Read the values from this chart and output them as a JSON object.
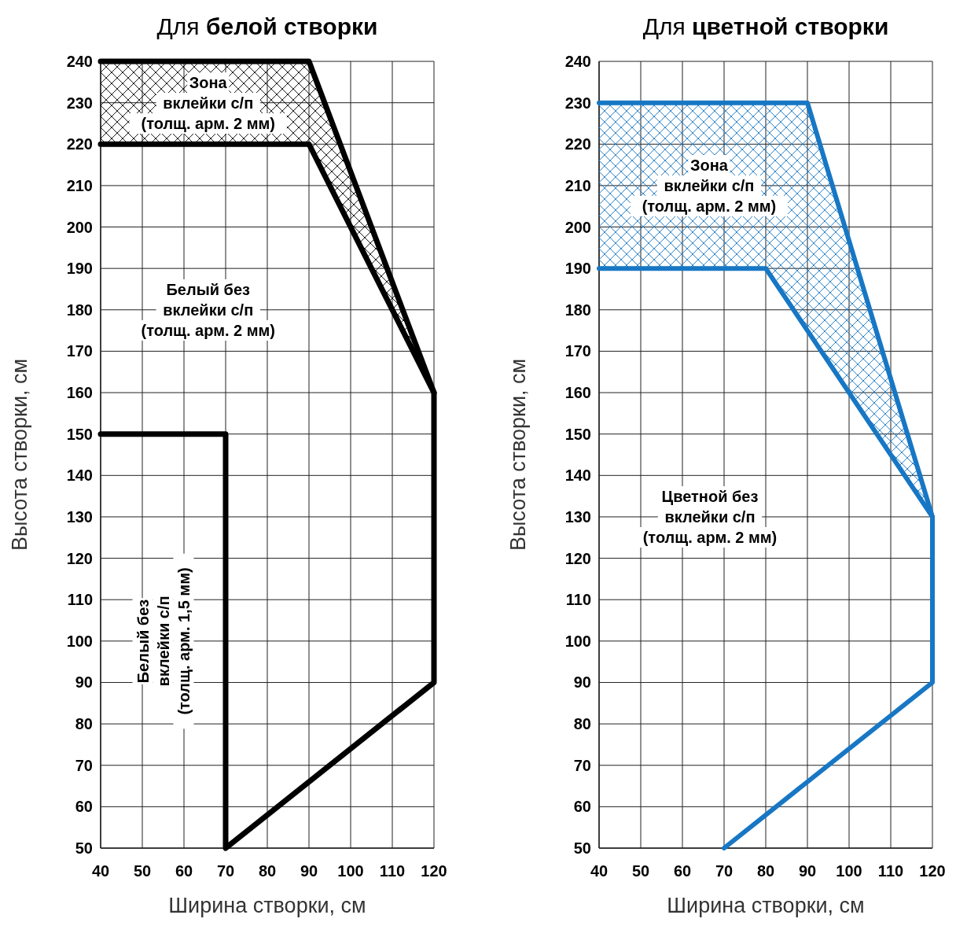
{
  "chart_data": [
    {
      "type": "line",
      "title": "Для белой створки",
      "xlabel": "Ширина створки, см",
      "ylabel": "Высота створки, см",
      "xlim": [
        40,
        120
      ],
      "ylim": [
        50,
        240
      ],
      "xticks": [
        40,
        50,
        60,
        70,
        80,
        90,
        100,
        110,
        120
      ],
      "yticks": [
        50,
        60,
        70,
        80,
        90,
        100,
        110,
        120,
        130,
        140,
        150,
        160,
        170,
        180,
        190,
        200,
        210,
        220,
        230,
        240
      ],
      "grid": true,
      "series": [
        {
          "color": "#000000",
          "x": [
            40,
            90,
            120,
            120,
            70,
            70,
            40
          ],
          "values": [
            240,
            240,
            160,
            90,
            50,
            150,
            150
          ]
        },
        {
          "color": "#000000",
          "x": [
            40,
            90,
            120
          ],
          "values": [
            220,
            220,
            160
          ],
          "lower": [
            220,
            220,
            160
          ],
          "upper": [
            240,
            240,
            160
          ]
        }
      ],
      "annotations": [
        "Зона\nвклейки с/п\n(толщ. арм. 2 мм)",
        "Белый без\nвклейки с/п\n(толщ. арм. 2 мм)",
        "Белый без\nвклейки с/п\n(толщ. арм. 1,5 мм)"
      ]
    },
    {
      "type": "line",
      "title": "Для цветной створки",
      "xlabel": "Ширина створки, см",
      "ylabel": "Высота створки, см",
      "xlim": [
        40,
        120
      ],
      "ylim": [
        50,
        240
      ],
      "xticks": [
        40,
        50,
        60,
        70,
        80,
        90,
        100,
        110,
        120
      ],
      "yticks": [
        50,
        60,
        70,
        80,
        90,
        100,
        110,
        120,
        130,
        140,
        150,
        160,
        170,
        180,
        190,
        200,
        210,
        220,
        230,
        240
      ],
      "grid": true,
      "series": [
        {
          "color": "#1777c4",
          "x": [
            40,
            90,
            120,
            120,
            70
          ],
          "values": [
            230,
            230,
            130,
            90,
            50
          ]
        },
        {
          "color": "#1777c4",
          "x": [
            40,
            80,
            90,
            120
          ],
          "values": [
            190,
            190,
            175,
            130
          ],
          "lower": [
            190,
            190,
            175,
            130
          ],
          "upper": [
            230,
            230,
            230,
            130
          ]
        }
      ],
      "annotations": [
        "Зона\nвклейки с/п\n(толщ. арм. 2 мм)",
        "Цветной без\nвклейки с/п\n(толщ. арм. 2 мм)"
      ]
    }
  ]
}
